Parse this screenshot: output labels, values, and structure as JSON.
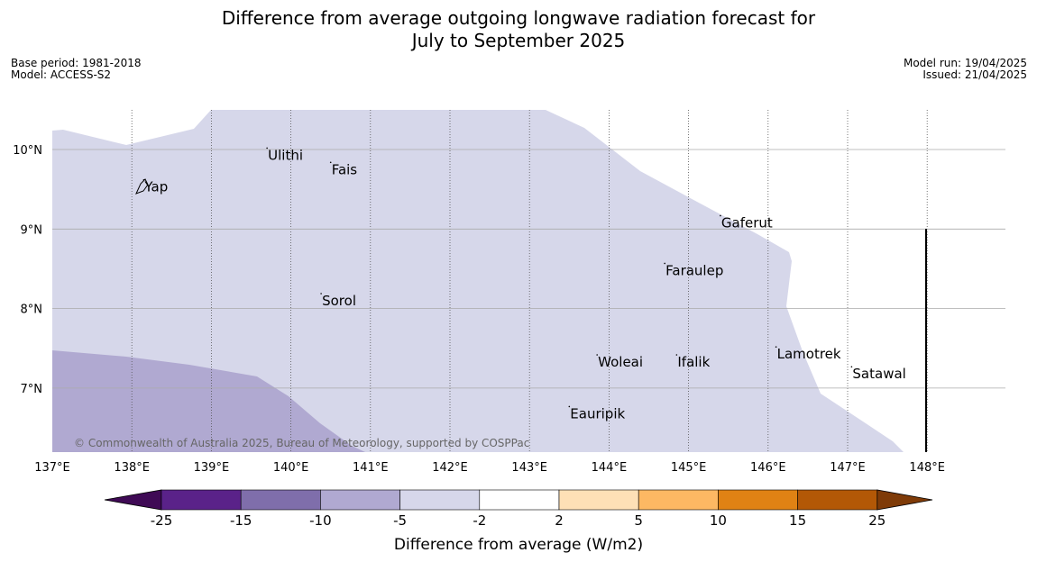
{
  "title": {
    "line1": "Difference from average outgoing longwave radiation forecast for",
    "line2": "July to September 2025"
  },
  "meta_left": {
    "base_period": "Base period: 1981-2018",
    "model": "Model: ACCESS-S2"
  },
  "meta_right": {
    "model_run": "Model run: 19/04/2025",
    "issued": "Issued: 21/04/2025"
  },
  "map": {
    "lon_range": [
      137,
      149
    ],
    "lat_range": [
      6.2,
      10.5
    ],
    "lon_ticks": [
      137,
      138,
      139,
      140,
      141,
      142,
      143,
      144,
      145,
      146,
      147,
      148
    ],
    "lon_tick_labels": [
      "137°E",
      "138°E",
      "139°E",
      "140°E",
      "141°E",
      "142°E",
      "143°E",
      "144°E",
      "145°E",
      "146°E",
      "147°E",
      "148°E"
    ],
    "lat_ticks": [
      7,
      8,
      9,
      10
    ],
    "lat_tick_labels": [
      "7°N",
      "8°N",
      "9°N",
      "10°N"
    ],
    "copyright": "© Commonwealth of Australia 2025, Bureau of Meteorology, supported by COSPPac",
    "places": [
      {
        "name": "Yap",
        "lon": 138.15,
        "lat": 9.55
      },
      {
        "name": "Ulithi",
        "lon": 139.7,
        "lat": 9.95
      },
      {
        "name": "Fais",
        "lon": 140.5,
        "lat": 9.77
      },
      {
        "name": "Gaferut",
        "lon": 145.4,
        "lat": 9.1
      },
      {
        "name": "Faraulep",
        "lon": 144.7,
        "lat": 8.5
      },
      {
        "name": "Sorol",
        "lon": 140.38,
        "lat": 8.12
      },
      {
        "name": "Lamotrek",
        "lon": 146.1,
        "lat": 7.45
      },
      {
        "name": "Woleai",
        "lon": 143.85,
        "lat": 7.35
      },
      {
        "name": "Ifalik",
        "lon": 144.85,
        "lat": 7.35
      },
      {
        "name": "Satawal",
        "lon": 147.05,
        "lat": 7.2
      },
      {
        "name": "Eauripik",
        "lon": 143.5,
        "lat": 6.7
      }
    ]
  },
  "colorbar": {
    "label": "Difference from average (W/m2)",
    "tick_labels": [
      "-25",
      "-15",
      "-10",
      "-5",
      "-2",
      "2",
      "5",
      "10",
      "15",
      "25"
    ],
    "colors": [
      "#3f0a55",
      "#5a2289",
      "#7f6eab",
      "#b0a9d1",
      "#d6d7ea",
      "#ffffff",
      "#fee0b6",
      "#fdb863",
      "#e08214",
      "#b35806",
      "#7f3b08"
    ]
  }
}
